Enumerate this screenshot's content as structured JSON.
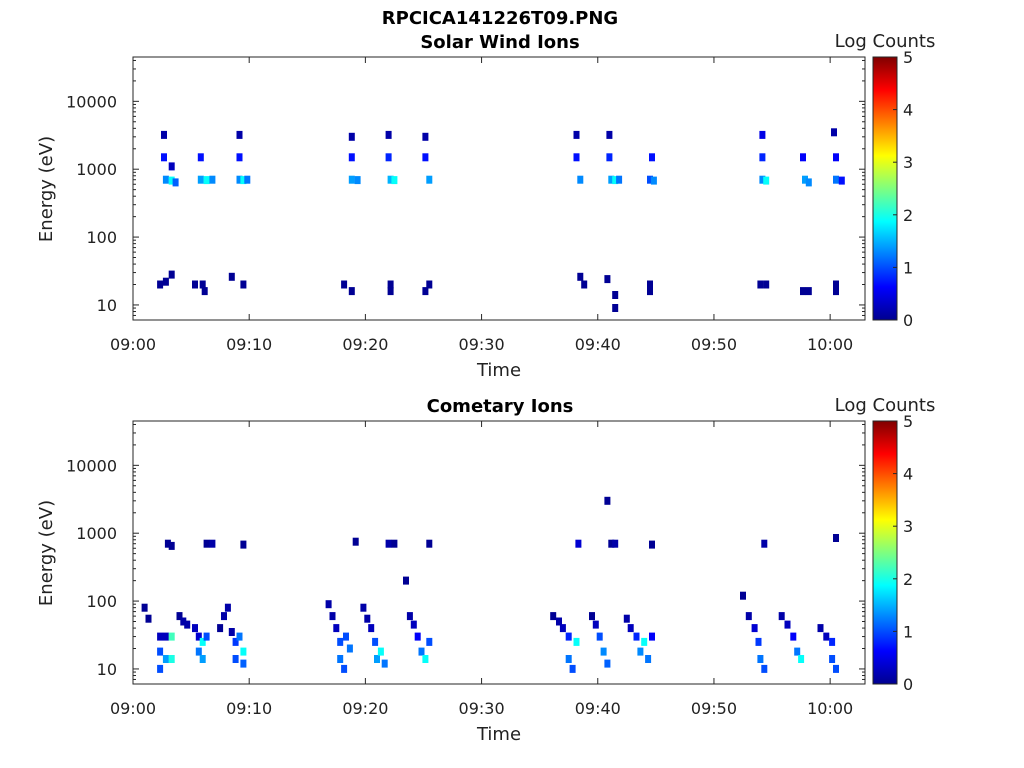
{
  "figure": {
    "title": "RPCICA141226T09.PNG"
  },
  "colorbar": {
    "label": "Log Counts",
    "ticks": [
      "0",
      "1",
      "2",
      "3",
      "4",
      "5"
    ],
    "colormap": "jet",
    "range": [
      0,
      5
    ]
  },
  "chart_data": [
    {
      "type": "heatmap",
      "title": "Solar Wind Ions",
      "xlabel": "Time",
      "ylabel": "Energy (eV)",
      "yscale": "log",
      "xlim": [
        "09:00",
        "10:03"
      ],
      "ylim": [
        6,
        45000
      ],
      "xticks": [
        "09:00",
        "09:10",
        "09:20",
        "09:30",
        "09:40",
        "09:50",
        "10:00"
      ],
      "yticks": [
        "10",
        "100",
        "1000",
        "10000"
      ],
      "grid": false,
      "colorbar": "right",
      "points": [
        {
          "t": "09:02:50",
          "e": 700,
          "v": 1.3
        },
        {
          "t": "09:03:20",
          "e": 680,
          "v": 1.9
        },
        {
          "t": "09:03:40",
          "e": 640,
          "v": 1.1
        },
        {
          "t": "09:02:40",
          "e": 1500,
          "v": 0.7
        },
        {
          "t": "09:02:40",
          "e": 3200,
          "v": 0.2
        },
        {
          "t": "09:03:20",
          "e": 1100,
          "v": 0.3
        },
        {
          "t": "09:02:20",
          "e": 20,
          "v": 0.1
        },
        {
          "t": "09:02:50",
          "e": 22,
          "v": 0.1
        },
        {
          "t": "09:03:20",
          "e": 28,
          "v": 0.1
        },
        {
          "t": "09:05:50",
          "e": 700,
          "v": 1.4
        },
        {
          "t": "09:06:20",
          "e": 690,
          "v": 1.9
        },
        {
          "t": "09:06:50",
          "e": 700,
          "v": 1.3
        },
        {
          "t": "09:05:50",
          "e": 1500,
          "v": 0.7
        },
        {
          "t": "09:06:00",
          "e": 20,
          "v": 0.1
        },
        {
          "t": "09:06:10",
          "e": 16,
          "v": 0.1
        },
        {
          "t": "09:05:20",
          "e": 20,
          "v": 0.1
        },
        {
          "t": "09:08:30",
          "e": 26,
          "v": 0.1
        },
        {
          "t": "09:09:10",
          "e": 700,
          "v": 1.3
        },
        {
          "t": "09:09:30",
          "e": 690,
          "v": 1.9
        },
        {
          "t": "09:09:50",
          "e": 700,
          "v": 1.2
        },
        {
          "t": "09:09:10",
          "e": 1500,
          "v": 0.7
        },
        {
          "t": "09:09:10",
          "e": 3200,
          "v": 0.2
        },
        {
          "t": "09:09:30",
          "e": 20,
          "v": 0.1
        },
        {
          "t": "09:18:10",
          "e": 20,
          "v": 0.1
        },
        {
          "t": "09:18:50",
          "e": 16,
          "v": 0.1
        },
        {
          "t": "09:18:50",
          "e": 700,
          "v": 1.4
        },
        {
          "t": "09:19:20",
          "e": 690,
          "v": 1.3
        },
        {
          "t": "09:18:50",
          "e": 1500,
          "v": 0.7
        },
        {
          "t": "09:18:50",
          "e": 3000,
          "v": 0.2
        },
        {
          "t": "09:22:10",
          "e": 700,
          "v": 1.5
        },
        {
          "t": "09:22:30",
          "e": 690,
          "v": 1.9
        },
        {
          "t": "09:22:00",
          "e": 1500,
          "v": 0.8
        },
        {
          "t": "09:22:00",
          "e": 3200,
          "v": 0.2
        },
        {
          "t": "09:22:10",
          "e": 20,
          "v": 0.1
        },
        {
          "t": "09:22:10",
          "e": 16,
          "v": 0.1
        },
        {
          "t": "09:25:30",
          "e": 700,
          "v": 1.4
        },
        {
          "t": "09:25:10",
          "e": 1500,
          "v": 0.7
        },
        {
          "t": "09:25:10",
          "e": 3000,
          "v": 0.2
        },
        {
          "t": "09:25:30",
          "e": 20,
          "v": 0.1
        },
        {
          "t": "09:25:10",
          "e": 16,
          "v": 0.1
        },
        {
          "t": "09:38:30",
          "e": 700,
          "v": 1.3
        },
        {
          "t": "09:38:10",
          "e": 1500,
          "v": 0.7
        },
        {
          "t": "09:38:10",
          "e": 3200,
          "v": 0.2
        },
        {
          "t": "09:38:30",
          "e": 26,
          "v": 0.1
        },
        {
          "t": "09:38:50",
          "e": 20,
          "v": 0.1
        },
        {
          "t": "09:41:10",
          "e": 700,
          "v": 1.4
        },
        {
          "t": "09:41:30",
          "e": 690,
          "v": 1.9
        },
        {
          "t": "09:41:50",
          "e": 700,
          "v": 1.2
        },
        {
          "t": "09:41:00",
          "e": 1500,
          "v": 0.8
        },
        {
          "t": "09:41:00",
          "e": 3200,
          "v": 0.2
        },
        {
          "t": "09:40:50",
          "e": 24,
          "v": 0.1
        },
        {
          "t": "09:41:30",
          "e": 14,
          "v": 0.1
        },
        {
          "t": "09:41:30",
          "e": 9,
          "v": 0.1
        },
        {
          "t": "09:44:30",
          "e": 700,
          "v": 1.0
        },
        {
          "t": "09:44:50",
          "e": 680,
          "v": 1.3
        },
        {
          "t": "09:44:40",
          "e": 1500,
          "v": 0.7
        },
        {
          "t": "09:44:30",
          "e": 20,
          "v": 0.1
        },
        {
          "t": "09:44:30",
          "e": 16,
          "v": 0.1
        },
        {
          "t": "09:54:10",
          "e": 700,
          "v": 1.3
        },
        {
          "t": "09:54:30",
          "e": 680,
          "v": 1.9
        },
        {
          "t": "09:54:10",
          "e": 1500,
          "v": 0.8
        },
        {
          "t": "09:54:10",
          "e": 3200,
          "v": 0.5
        },
        {
          "t": "09:54:00",
          "e": 20,
          "v": 0.1
        },
        {
          "t": "09:54:30",
          "e": 20,
          "v": 0.1
        },
        {
          "t": "09:57:50",
          "e": 700,
          "v": 1.4
        },
        {
          "t": "09:58:10",
          "e": 640,
          "v": 1.3
        },
        {
          "t": "09:57:40",
          "e": 1500,
          "v": 0.6
        },
        {
          "t": "09:57:40",
          "e": 16,
          "v": 0.1
        },
        {
          "t": "09:58:10",
          "e": 16,
          "v": 0.1
        },
        {
          "t": "10:00:30",
          "e": 700,
          "v": 1.2
        },
        {
          "t": "10:00:30",
          "e": 1500,
          "v": 0.6
        },
        {
          "t": "10:00:20",
          "e": 3500,
          "v": 0.2
        },
        {
          "t": "10:01:00",
          "e": 680,
          "v": 0.7
        },
        {
          "t": "10:00:30",
          "e": 16,
          "v": 0.1
        },
        {
          "t": "10:00:30",
          "e": 20,
          "v": 0.1
        }
      ]
    },
    {
      "type": "heatmap",
      "title": "Cometary Ions",
      "xlabel": "Time",
      "ylabel": "Energy (eV)",
      "yscale": "log",
      "xlim": [
        "09:00",
        "10:03"
      ],
      "ylim": [
        6,
        45000
      ],
      "xticks": [
        "09:00",
        "09:10",
        "09:20",
        "09:30",
        "09:40",
        "09:50",
        "10:00"
      ],
      "yticks": [
        "10",
        "100",
        "1000",
        "10000"
      ],
      "grid": false,
      "colorbar": "right",
      "points": [
        {
          "t": "09:01:00",
          "e": 80,
          "v": 0.1
        },
        {
          "t": "09:01:20",
          "e": 55,
          "v": 0.1
        },
        {
          "t": "09:02:20",
          "e": 30,
          "v": 0.3
        },
        {
          "t": "09:02:20",
          "e": 18,
          "v": 1.0
        },
        {
          "t": "09:02:20",
          "e": 10,
          "v": 1.0
        },
        {
          "t": "09:02:50",
          "e": 30,
          "v": 0.3
        },
        {
          "t": "09:02:50",
          "e": 14,
          "v": 1.4
        },
        {
          "t": "09:03:20",
          "e": 30,
          "v": 2.2
        },
        {
          "t": "09:03:20",
          "e": 14,
          "v": 2.0
        },
        {
          "t": "09:03:00",
          "e": 700,
          "v": 0.1
        },
        {
          "t": "09:03:20",
          "e": 650,
          "v": 0.1
        },
        {
          "t": "09:04:00",
          "e": 60,
          "v": 0.1
        },
        {
          "t": "09:04:20",
          "e": 50,
          "v": 0.2
        },
        {
          "t": "09:04:40",
          "e": 45,
          "v": 0.2
        },
        {
          "t": "09:05:20",
          "e": 40,
          "v": 0.3
        },
        {
          "t": "09:05:40",
          "e": 30,
          "v": 0.4
        },
        {
          "t": "09:05:40",
          "e": 18,
          "v": 1.2
        },
        {
          "t": "09:06:00",
          "e": 14,
          "v": 1.4
        },
        {
          "t": "09:06:00",
          "e": 25,
          "v": 1.9
        },
        {
          "t": "09:06:20",
          "e": 30,
          "v": 1.0
        },
        {
          "t": "09:06:20",
          "e": 700,
          "v": 0.1
        },
        {
          "t": "09:06:50",
          "e": 700,
          "v": 0.2
        },
        {
          "t": "09:07:30",
          "e": 40,
          "v": 0.1
        },
        {
          "t": "09:07:50",
          "e": 60,
          "v": 0.2
        },
        {
          "t": "09:08:10",
          "e": 80,
          "v": 0.2
        },
        {
          "t": "09:08:30",
          "e": 35,
          "v": 0.2
        },
        {
          "t": "09:08:50",
          "e": 25,
          "v": 0.9
        },
        {
          "t": "09:08:50",
          "e": 14,
          "v": 1.0
        },
        {
          "t": "09:09:10",
          "e": 30,
          "v": 1.2
        },
        {
          "t": "09:09:30",
          "e": 18,
          "v": 1.9
        },
        {
          "t": "09:09:30",
          "e": 12,
          "v": 1.1
        },
        {
          "t": "09:09:30",
          "e": 680,
          "v": 0.1
        },
        {
          "t": "09:16:50",
          "e": 90,
          "v": 0.2
        },
        {
          "t": "09:17:10",
          "e": 60,
          "v": 0.2
        },
        {
          "t": "09:17:30",
          "e": 40,
          "v": 0.3
        },
        {
          "t": "09:17:50",
          "e": 25,
          "v": 1.0
        },
        {
          "t": "09:17:50",
          "e": 14,
          "v": 1.2
        },
        {
          "t": "09:18:10",
          "e": 10,
          "v": 1.0
        },
        {
          "t": "09:18:20",
          "e": 30,
          "v": 1.0
        },
        {
          "t": "09:18:40",
          "e": 20,
          "v": 1.2
        },
        {
          "t": "09:19:10",
          "e": 750,
          "v": 0.1
        },
        {
          "t": "09:19:50",
          "e": 80,
          "v": 0.2
        },
        {
          "t": "09:20:10",
          "e": 55,
          "v": 0.2
        },
        {
          "t": "09:20:30",
          "e": 40,
          "v": 0.3
        },
        {
          "t": "09:20:50",
          "e": 25,
          "v": 1.0
        },
        {
          "t": "09:21:00",
          "e": 14,
          "v": 1.4
        },
        {
          "t": "09:21:20",
          "e": 18,
          "v": 1.9
        },
        {
          "t": "09:21:40",
          "e": 12,
          "v": 1.2
        },
        {
          "t": "09:22:00",
          "e": 700,
          "v": 0.2
        },
        {
          "t": "09:22:30",
          "e": 700,
          "v": 0.1
        },
        {
          "t": "09:23:30",
          "e": 200,
          "v": 0.1
        },
        {
          "t": "09:23:50",
          "e": 60,
          "v": 0.2
        },
        {
          "t": "09:24:10",
          "e": 45,
          "v": 0.3
        },
        {
          "t": "09:24:30",
          "e": 30,
          "v": 0.6
        },
        {
          "t": "09:24:50",
          "e": 18,
          "v": 1.2
        },
        {
          "t": "09:25:10",
          "e": 14,
          "v": 1.9
        },
        {
          "t": "09:25:30",
          "e": 25,
          "v": 1.0
        },
        {
          "t": "09:25:30",
          "e": 700,
          "v": 0.1
        },
        {
          "t": "09:36:10",
          "e": 60,
          "v": 0.1
        },
        {
          "t": "09:36:40",
          "e": 50,
          "v": 0.2
        },
        {
          "t": "09:37:00",
          "e": 40,
          "v": 0.3
        },
        {
          "t": "09:37:30",
          "e": 30,
          "v": 0.8
        },
        {
          "t": "09:37:30",
          "e": 14,
          "v": 1.2
        },
        {
          "t": "09:37:50",
          "e": 10,
          "v": 1.0
        },
        {
          "t": "09:38:10",
          "e": 25,
          "v": 1.9
        },
        {
          "t": "09:38:20",
          "e": 700,
          "v": 0.4
        },
        {
          "t": "09:39:30",
          "e": 60,
          "v": 0.1
        },
        {
          "t": "09:39:50",
          "e": 45,
          "v": 0.3
        },
        {
          "t": "09:40:10",
          "e": 30,
          "v": 1.0
        },
        {
          "t": "09:40:30",
          "e": 18,
          "v": 1.3
        },
        {
          "t": "09:40:50",
          "e": 12,
          "v": 1.1
        },
        {
          "t": "09:40:50",
          "e": 3000,
          "v": 0.1
        },
        {
          "t": "09:41:10",
          "e": 700,
          "v": 0.1
        },
        {
          "t": "09:41:30",
          "e": 700,
          "v": 0.2
        },
        {
          "t": "09:42:30",
          "e": 55,
          "v": 0.2
        },
        {
          "t": "09:42:50",
          "e": 40,
          "v": 0.3
        },
        {
          "t": "09:43:20",
          "e": 30,
          "v": 0.8
        },
        {
          "t": "09:43:40",
          "e": 18,
          "v": 1.3
        },
        {
          "t": "09:44:00",
          "e": 25,
          "v": 1.9
        },
        {
          "t": "09:44:20",
          "e": 14,
          "v": 1.2
        },
        {
          "t": "09:44:40",
          "e": 30,
          "v": 0.6
        },
        {
          "t": "09:44:40",
          "e": 680,
          "v": 0.1
        },
        {
          "t": "09:52:30",
          "e": 120,
          "v": 0.1
        },
        {
          "t": "09:53:00",
          "e": 60,
          "v": 0.2
        },
        {
          "t": "09:53:30",
          "e": 40,
          "v": 0.4
        },
        {
          "t": "09:53:50",
          "e": 25,
          "v": 0.9
        },
        {
          "t": "09:54:00",
          "e": 14,
          "v": 1.2
        },
        {
          "t": "09:54:20",
          "e": 10,
          "v": 1.0
        },
        {
          "t": "09:54:20",
          "e": 700,
          "v": 0.2
        },
        {
          "t": "09:55:50",
          "e": 60,
          "v": 0.2
        },
        {
          "t": "09:56:20",
          "e": 45,
          "v": 0.3
        },
        {
          "t": "09:56:50",
          "e": 30,
          "v": 0.6
        },
        {
          "t": "09:57:10",
          "e": 18,
          "v": 1.2
        },
        {
          "t": "09:57:30",
          "e": 14,
          "v": 1.9
        },
        {
          "t": "09:59:10",
          "e": 40,
          "v": 0.2
        },
        {
          "t": "09:59:40",
          "e": 30,
          "v": 0.3
        },
        {
          "t": "10:00:10",
          "e": 25,
          "v": 0.8
        },
        {
          "t": "10:00:10",
          "e": 14,
          "v": 1.0
        },
        {
          "t": "10:00:30",
          "e": 10,
          "v": 1.0
        },
        {
          "t": "10:00:30",
          "e": 850,
          "v": 0.1
        }
      ]
    }
  ]
}
